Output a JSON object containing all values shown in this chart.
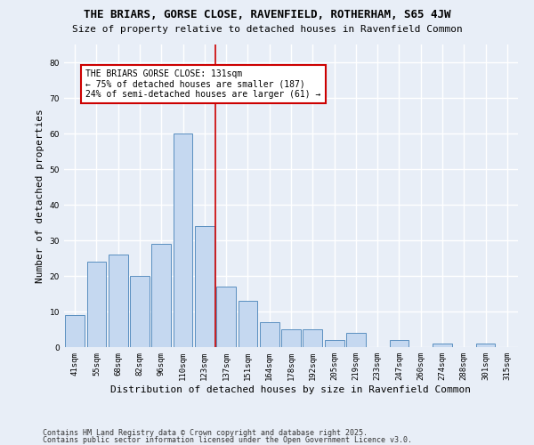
{
  "title": "THE BRIARS, GORSE CLOSE, RAVENFIELD, ROTHERHAM, S65 4JW",
  "subtitle": "Size of property relative to detached houses in Ravenfield Common",
  "xlabel": "Distribution of detached houses by size in Ravenfield Common",
  "ylabel": "Number of detached properties",
  "categories": [
    "41sqm",
    "55sqm",
    "68sqm",
    "82sqm",
    "96sqm",
    "110sqm",
    "123sqm",
    "137sqm",
    "151sqm",
    "164sqm",
    "178sqm",
    "192sqm",
    "205sqm",
    "219sqm",
    "233sqm",
    "247sqm",
    "260sqm",
    "274sqm",
    "288sqm",
    "301sqm",
    "315sqm"
  ],
  "values": [
    9,
    24,
    26,
    20,
    29,
    60,
    34,
    17,
    13,
    7,
    5,
    5,
    2,
    4,
    0,
    2,
    0,
    1,
    0,
    1,
    0
  ],
  "bar_color": "#c5d8f0",
  "bar_edge_color": "#5a8fc0",
  "background_color": "#e8eef7",
  "grid_color": "#ffffff",
  "vline_color": "#cc0000",
  "annotation_title": "THE BRIARS GORSE CLOSE: 131sqm",
  "annotation_line1": "← 75% of detached houses are smaller (187)",
  "annotation_line2": "24% of semi-detached houses are larger (61) →",
  "annotation_box_color": "#ffffff",
  "annotation_box_edge": "#cc0000",
  "ylim": [
    0,
    85
  ],
  "yticks": [
    0,
    10,
    20,
    30,
    40,
    50,
    60,
    70,
    80
  ],
  "footer1": "Contains HM Land Registry data © Crown copyright and database right 2025.",
  "footer2": "Contains public sector information licensed under the Open Government Licence v3.0.",
  "title_fontsize": 9,
  "subtitle_fontsize": 8,
  "tick_fontsize": 6.5,
  "label_fontsize": 8,
  "annotation_fontsize": 7,
  "footer_fontsize": 6
}
